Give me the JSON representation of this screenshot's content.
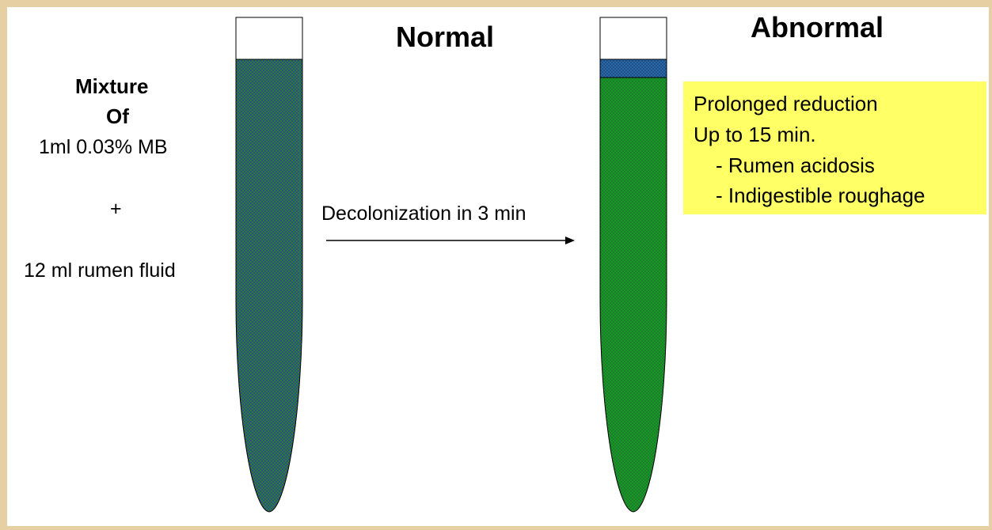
{
  "normal": {
    "title": "Normal",
    "mixture": {
      "heading_line1": "Mixture",
      "heading_line2": "Of",
      "line1": "1ml 0.03% MB",
      "plus": "+",
      "line2": "12 ml rumen fluid"
    }
  },
  "arrow_label": "Decolonization in 3 min",
  "abnormal": {
    "title": "Abnormal",
    "note": {
      "line1": "Prolonged reduction",
      "line2": "Up to 15 min.",
      "bullet1": "- Rumen acidosis",
      "bullet2": "- Indigestible roughage"
    }
  },
  "colors": {
    "frame": "#e6cfa2",
    "normal_fluid": "#2f6a5f",
    "abnormal_fluid": "#1a8a2c",
    "abnormal_top_layer": "#1f4f8f",
    "note_background": "#ffff66"
  }
}
